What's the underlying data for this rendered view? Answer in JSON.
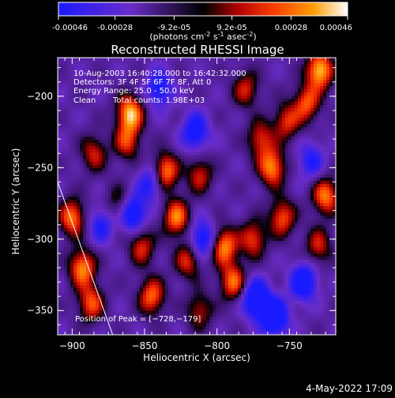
{
  "colorbar": {
    "tick_labels": [
      "-0.00046",
      "-0.00028",
      "-9.2e-05",
      "9.2e-05",
      "0.00028",
      "0.00046"
    ],
    "tick_values": [
      -0.00046,
      -0.00028,
      -9.2e-05,
      9.2e-05,
      0.00028,
      0.00046
    ],
    "range": [
      -0.00046,
      0.00046
    ],
    "units": "(photons cm",
    "units_exp1": "-2",
    "units_mid": " s",
    "units_exp2": "-1",
    "units_mid2": " asec",
    "units_exp3": "-2",
    "units_end": ")",
    "colors": [
      "#1a1aff",
      "#6a2cc8",
      "#000000",
      "#b00000",
      "#ff4000",
      "#ff9c00",
      "#ffffff"
    ]
  },
  "chart_data": {
    "type": "heatmap",
    "title": "Reconstructed RHESSI Image",
    "xlabel": "Heliocentric X (arcsec)",
    "ylabel": "Heliocentric Y (arcsec)",
    "xlim": [
      -910,
      -718
    ],
    "ylim": [
      -367,
      -173
    ],
    "xticks": [
      -900,
      -850,
      -800,
      -750
    ],
    "xtick_labels": [
      "−900",
      "−850",
      "−800",
      "−750"
    ],
    "yticks": [
      -200,
      -250,
      -300,
      -350
    ],
    "ytick_labels": [
      "−200",
      "−250",
      "−300",
      "−350"
    ],
    "annotations": {
      "line1": "10-Aug-2003 16:40:28.000 to 16:42:32.000",
      "line2": "Detectors: 3F 4F 5F 6F 7F 8F, Att 0",
      "line3": "Energy Range: 25.0 - 50.0 keV",
      "line4_a": "Clean",
      "line4_b": "Total counts: 1.98E+03",
      "peak": "Position of Peak = [−728,−179]"
    },
    "peak_position": [
      -728,
      -179
    ],
    "hot_spots": [
      {
        "x": -900,
        "y": -285,
        "v": 0.8
      },
      {
        "x": -893,
        "y": -320,
        "v": 0.85
      },
      {
        "x": -887,
        "y": -345,
        "v": 0.7
      },
      {
        "x": -885,
        "y": -240,
        "v": 0.55
      },
      {
        "x": -860,
        "y": -212,
        "v": 0.95
      },
      {
        "x": -862,
        "y": -232,
        "v": 0.6
      },
      {
        "x": -852,
        "y": -305,
        "v": 0.6
      },
      {
        "x": -845,
        "y": -340,
        "v": 0.75
      },
      {
        "x": -836,
        "y": -253,
        "v": 0.9
      },
      {
        "x": -828,
        "y": -285,
        "v": 0.8
      },
      {
        "x": -820,
        "y": -315,
        "v": 0.6
      },
      {
        "x": -812,
        "y": -255,
        "v": 0.55
      },
      {
        "x": -795,
        "y": -305,
        "v": 0.85
      },
      {
        "x": -789,
        "y": -330,
        "v": 0.75
      },
      {
        "x": -775,
        "y": -300,
        "v": 0.65
      },
      {
        "x": -770,
        "y": -230,
        "v": 0.6
      },
      {
        "x": -762,
        "y": -250,
        "v": 0.85
      },
      {
        "x": -755,
        "y": -285,
        "v": 0.7
      },
      {
        "x": -752,
        "y": -218,
        "v": 0.6
      },
      {
        "x": -738,
        "y": -205,
        "v": 0.7
      },
      {
        "x": -729,
        "y": -182,
        "v": 1.0
      },
      {
        "x": -725,
        "y": -270,
        "v": 0.8
      },
      {
        "x": -730,
        "y": -305,
        "v": 0.55
      },
      {
        "x": -780,
        "y": -195,
        "v": 0.55
      },
      {
        "x": -812,
        "y": -350,
        "v": 0.5
      },
      {
        "x": -868,
        "y": -275,
        "v": 0.4
      }
    ],
    "cold_spots": [
      {
        "x": -858,
        "y": -282,
        "v": -0.8
      },
      {
        "x": -810,
        "y": -300,
        "v": -0.7
      },
      {
        "x": -773,
        "y": -342,
        "v": -0.95
      },
      {
        "x": -760,
        "y": -355,
        "v": -0.9
      },
      {
        "x": -740,
        "y": -330,
        "v": -0.8
      },
      {
        "x": -815,
        "y": -225,
        "v": -0.7
      },
      {
        "x": -845,
        "y": -260,
        "v": -0.6
      },
      {
        "x": -880,
        "y": -290,
        "v": -0.5
      },
      {
        "x": -840,
        "y": -195,
        "v": -0.6
      },
      {
        "x": -735,
        "y": -245,
        "v": -0.5
      }
    ],
    "limb_line": [
      [
        -910,
        -260
      ],
      [
        -872,
        -367
      ]
    ]
  },
  "footer": {
    "date": "4-May-2022 17:09"
  }
}
